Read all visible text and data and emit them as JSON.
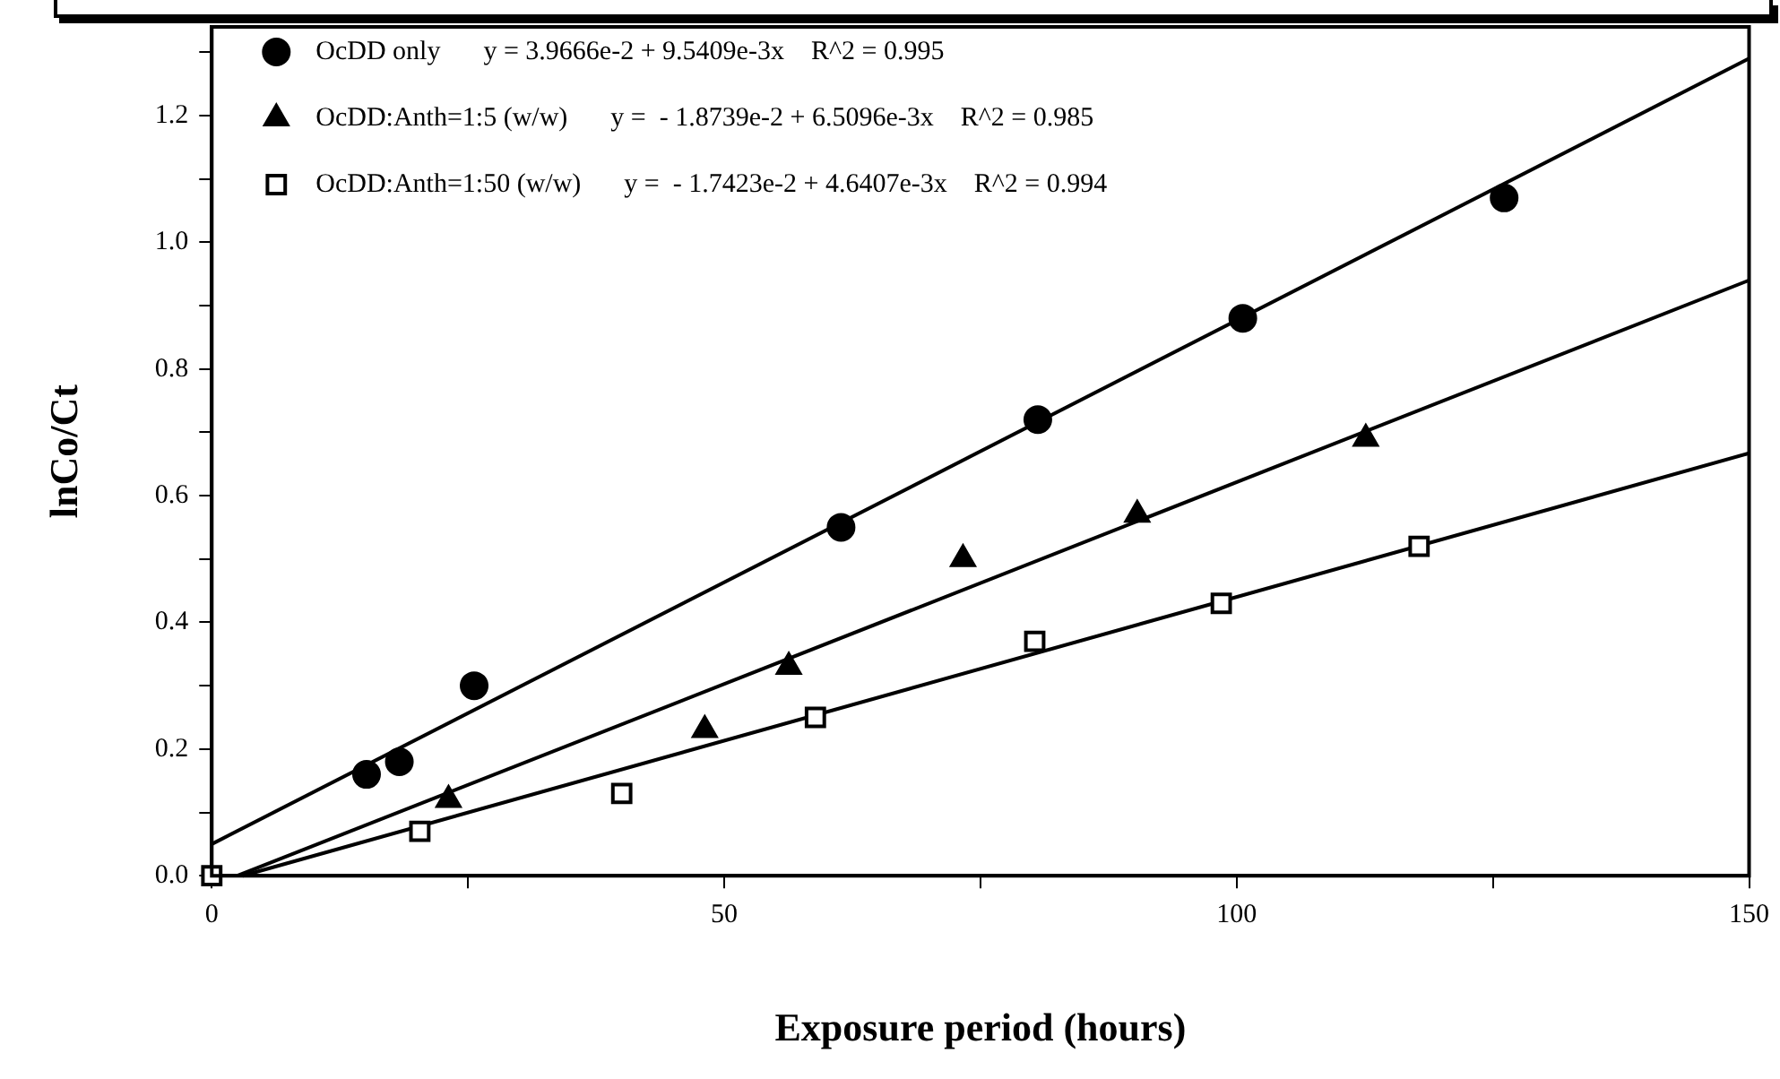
{
  "chart_data": {
    "type": "scatter",
    "xlabel": "Exposure period (hours)",
    "ylabel": "lnCo/Ct",
    "xlim": [
      0,
      150
    ],
    "ylim": [
      0,
      1.34
    ],
    "xticks": [
      0,
      {
        "value": 25,
        "label": null
      },
      50,
      {
        "value": 75,
        "label": null
      },
      100,
      {
        "value": 125,
        "label": null
      },
      150
    ],
    "yticks": [
      {
        "value": 0,
        "label": "0.0"
      },
      {
        "value": 0.1,
        "label": null
      },
      {
        "value": 0.2,
        "label": "0.2"
      },
      {
        "value": 0.3,
        "label": null
      },
      {
        "value": 0.4,
        "label": "0.4"
      },
      {
        "value": 0.5,
        "label": null
      },
      {
        "value": 0.6,
        "label": "0.6"
      },
      {
        "value": 0.7,
        "label": null
      },
      {
        "value": 0.8,
        "label": "0.8"
      },
      {
        "value": 0.9,
        "label": null
      },
      {
        "value": 1,
        "label": "1.0"
      },
      {
        "value": 1.1,
        "label": null
      },
      {
        "value": 1.2,
        "label": "1.2"
      },
      {
        "value": 1.3,
        "label": null
      }
    ],
    "grid": false,
    "legend": "top left",
    "annotations": [
      "y = 3.9666e-2 + 9.5409e-3x    R^2 = 0.995",
      "y =  - 1.8739e-2 + 6.5096e-3x    R^2 = 0.985",
      "y =  - 1.7423e-2 + 4.6407e-3x    R^2 = 0.994"
    ],
    "series": [
      {
        "name": "OcDD only",
        "type": "scatter",
        "marker": "circle",
        "color": "#000000",
        "x": [
          15.1,
          18.3,
          25.6,
          61.4,
          80.6,
          100.6,
          126.1
        ],
        "values": [
          0.16,
          0.18,
          0.3,
          0.55,
          0.72,
          0.88,
          1.07
        ]
      },
      {
        "name": "OcDD:Anth=1:5 (w/w)",
        "type": "scatter",
        "marker": "triangle",
        "color": "#000000",
        "x": [
          23.1,
          48.1,
          56.3,
          73.3,
          90.3,
          112.6
        ],
        "values": [
          0.12,
          0.23,
          0.33,
          0.5,
          0.57,
          0.69
        ]
      },
      {
        "name": "OcDD:Anth=1:50 (w/w)",
        "type": "scatter",
        "marker": "square",
        "color": "#000000",
        "x": [
          0,
          20.3,
          40,
          58.9,
          80.3,
          98.5,
          117.8
        ],
        "values": [
          0,
          0.07,
          0.13,
          0.25,
          0.37,
          0.43,
          0.52
        ]
      },
      {
        "type": "line",
        "marker": "none",
        "color": "#000000",
        "x": [
          0,
          150
        ],
        "values": [
          0.05,
          1.29
        ]
      },
      {
        "type": "line",
        "marker": "none",
        "color": "#000000",
        "x": [
          2.5,
          150
        ],
        "values": [
          0,
          0.94
        ]
      },
      {
        "type": "line",
        "marker": "none",
        "color": "#000000",
        "x": [
          3,
          150
        ],
        "values": [
          0,
          0.667
        ]
      }
    ]
  }
}
